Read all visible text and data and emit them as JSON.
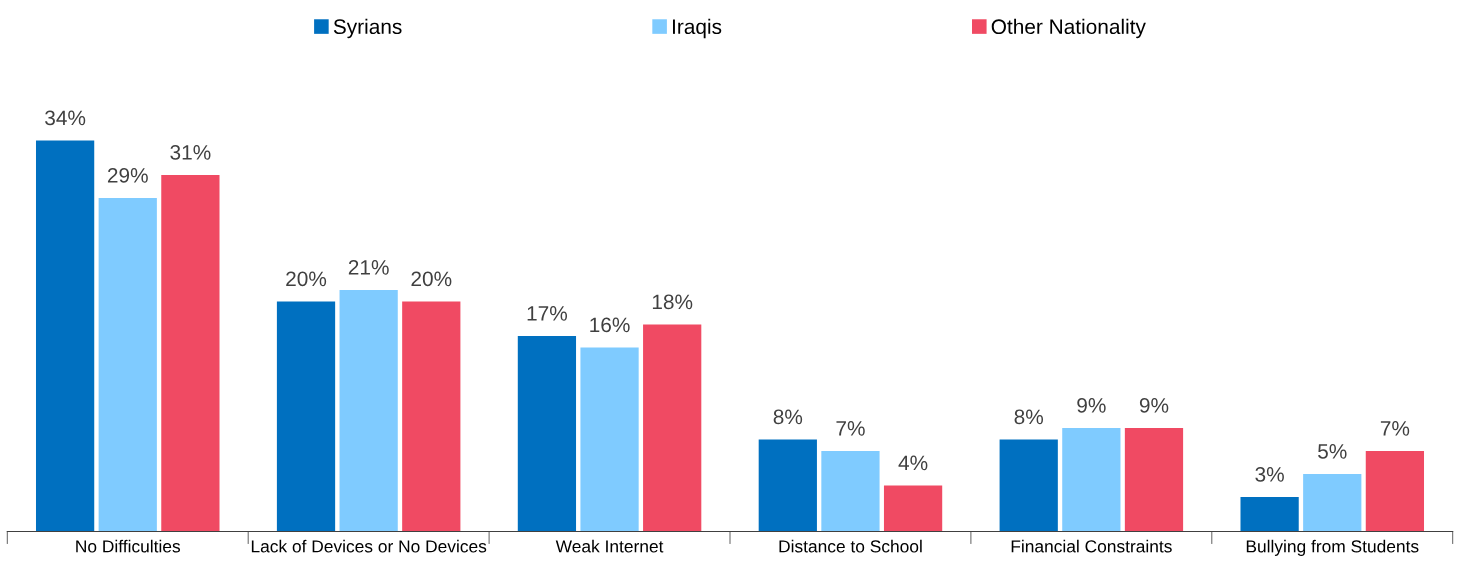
{
  "chart_data": {
    "type": "bar",
    "categories": [
      "No Difficulties",
      "Lack of Devices or No Devices",
      "Weak Internet",
      "Distance to School",
      "Financial Constraints",
      "Bullying from Students"
    ],
    "series": [
      {
        "name": "Syrians",
        "color": "#0070c0",
        "values": [
          34,
          20,
          17,
          8,
          8,
          3
        ],
        "value_labels": [
          "34%",
          "20%",
          "17%",
          "8%",
          "8%",
          "3%"
        ]
      },
      {
        "name": "Iraqis",
        "color": "#7fcbff",
        "values": [
          29,
          21,
          16,
          7,
          9,
          5
        ],
        "value_labels": [
          "29%",
          "21%",
          "16%",
          "7%",
          "9%",
          "5%"
        ]
      },
      {
        "name": "Other Nationality",
        "color": "#f04a63",
        "values": [
          31,
          20,
          18,
          4,
          9,
          7
        ],
        "value_labels": [
          "31%",
          "20%",
          "18%",
          "4%",
          "9%",
          "7%"
        ]
      }
    ],
    "legend": "top",
    "tick_labels": "x"
  }
}
